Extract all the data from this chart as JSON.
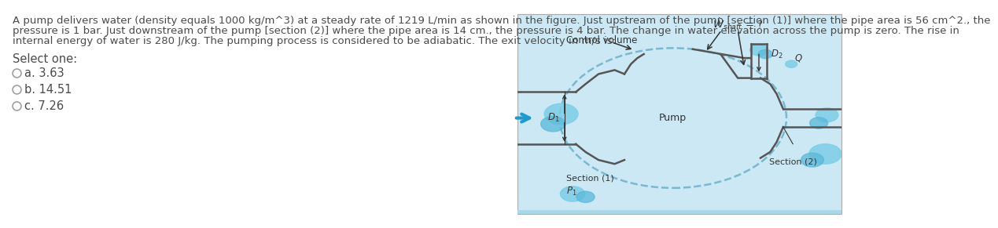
{
  "title_line1": "A pump delivers water (density equals 1000 kg/m^3) at a steady rate of 1219 L/min as shown in the figure. Just upstream of the pump [section (1)] where the pipe area is 56 cm^2., the",
  "title_line2": "pressure is 1 bar. Just downstream of the pump [section (2)] where the pipe area is 14 cm., the pressure is 4 bar. The change in water elevation across the pump is zero. The rise in",
  "title_line3": "internal energy of water is 280 J/kg. The pumping process is considered to be adiabatic. The exit velocity in m/s is:",
  "select_one": "Select one:",
  "options": [
    "a. 3.63",
    "b. 14.51",
    "c. 7.26"
  ],
  "bg_color": "#ffffff",
  "text_color": "#4a4a4a",
  "diagram_bg": "#cce8f4",
  "title_fontsize": 9.5,
  "option_fontsize": 10.5,
  "select_fontsize": 10.5
}
